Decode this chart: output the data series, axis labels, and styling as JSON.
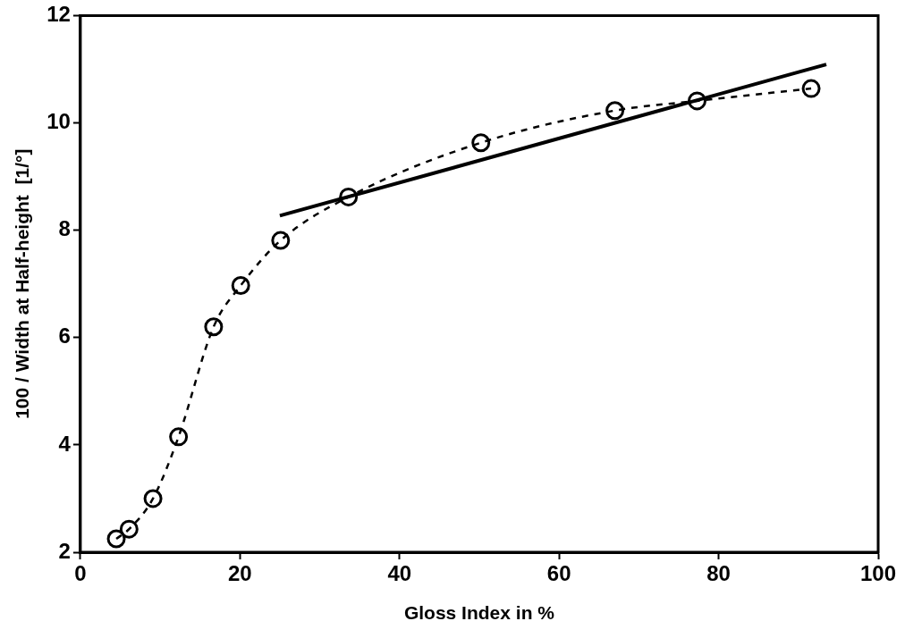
{
  "chart_data": {
    "type": "scatter",
    "xlabel": "Gloss Index in %",
    "ylabel": "100 / Width at Half-height  [1/°]",
    "xlim": [
      0,
      100
    ],
    "xticks": [
      0,
      20,
      40,
      60,
      80,
      100
    ],
    "ylim": [
      2,
      12
    ],
    "yticks": [
      2,
      4,
      6,
      8,
      10,
      12
    ],
    "grid": false,
    "legend": false,
    "series": [
      {
        "type": "line",
        "color": "#000000",
        "marker": "circle",
        "line_style": "dashed",
        "x": [
          4.5,
          6.1,
          9.1,
          12.3,
          16.7,
          20.1,
          25.1,
          33.6,
          50.2,
          67.0,
          77.3,
          91.6
        ],
        "values": [
          2.25,
          2.43,
          3.0,
          4.15,
          6.2,
          6.97,
          7.81,
          8.62,
          9.63,
          10.23,
          10.41,
          10.64
        ]
      },
      {
        "type": "line",
        "color": "#000000",
        "marker": "none",
        "line_style": "solid",
        "x": [
          25,
          93.5
        ],
        "values": [
          8.27,
          11.09
        ]
      }
    ]
  }
}
